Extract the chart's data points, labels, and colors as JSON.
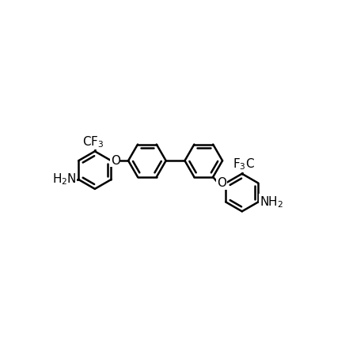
{
  "background_color": "#ffffff",
  "line_color": "#000000",
  "line_width": 1.8,
  "font_size": 11,
  "figure_width": 4.41,
  "figure_height": 4.54,
  "dpi": 100
}
